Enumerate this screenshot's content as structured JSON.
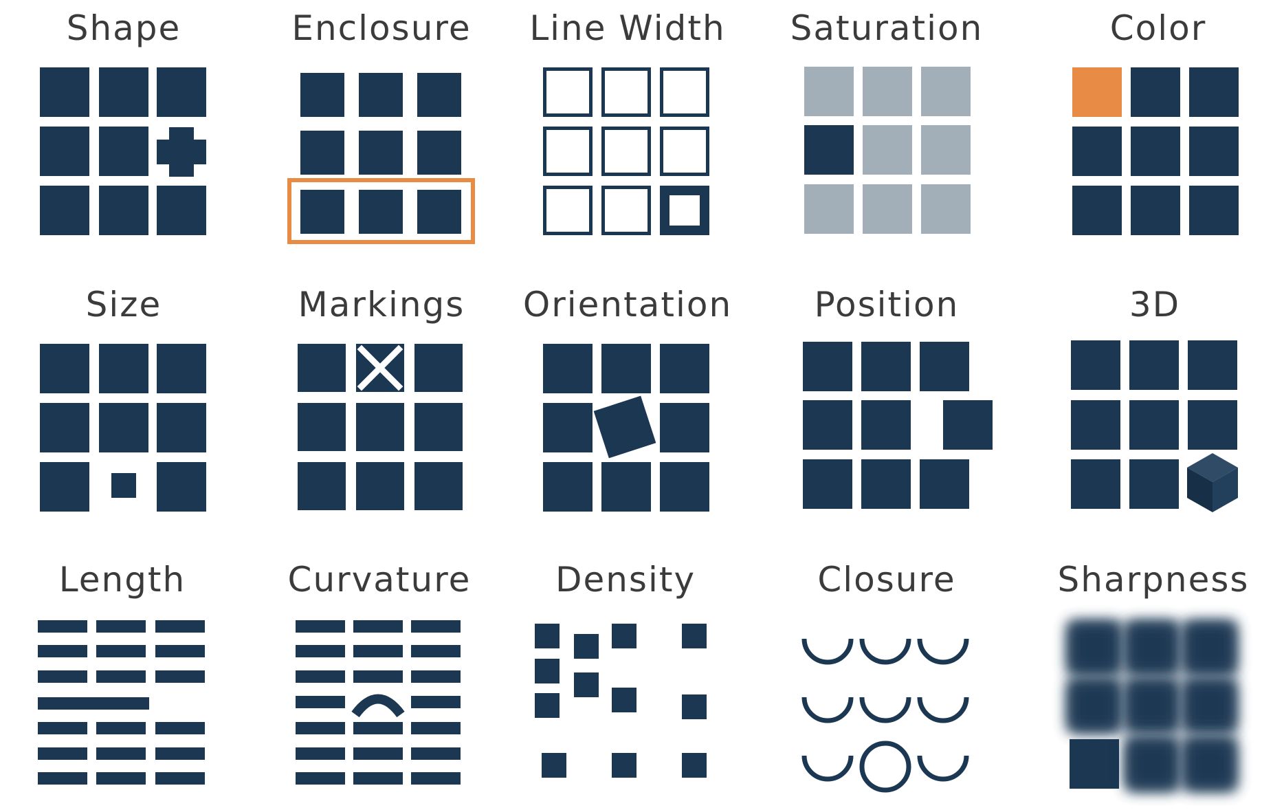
{
  "colors": {
    "navy": "#1c3752",
    "orange": "#e88c45",
    "gray": "#a2afb9",
    "background": "#ffffff",
    "title": "#3b3b3b"
  },
  "panels": [
    {
      "key": "shape",
      "title": "Shape"
    },
    {
      "key": "enclosure",
      "title": "Enclosure"
    },
    {
      "key": "line-width",
      "title": "Line Width"
    },
    {
      "key": "saturation",
      "title": "Saturation"
    },
    {
      "key": "color",
      "title": "Color"
    },
    {
      "key": "size",
      "title": "Size"
    },
    {
      "key": "markings",
      "title": "Markings"
    },
    {
      "key": "orientation",
      "title": "Orientation"
    },
    {
      "key": "position",
      "title": "Position"
    },
    {
      "key": "3d",
      "title": "3D"
    },
    {
      "key": "length",
      "title": "Length"
    },
    {
      "key": "curvature",
      "title": "Curvature"
    },
    {
      "key": "density",
      "title": "Density"
    },
    {
      "key": "closure",
      "title": "Closure"
    },
    {
      "key": "sharpness",
      "title": "Sharpness"
    }
  ]
}
